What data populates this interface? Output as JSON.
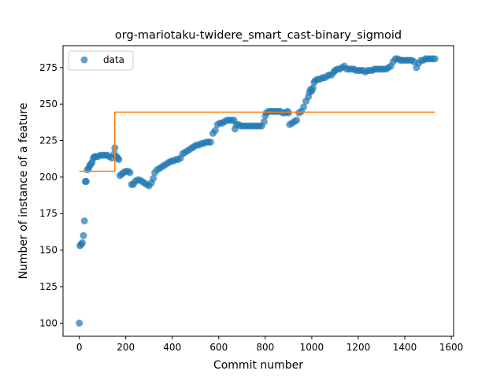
{
  "chart_data": {
    "type": "scatter",
    "title": "org-mariotaku-twidere_smart_cast-binary_sigmoid",
    "xlabel": "Commit number",
    "ylabel": "Number of instance of a feature",
    "xlim": [
      -70,
      1610
    ],
    "ylim": [
      91,
      290
    ],
    "xticks": [
      0,
      200,
      400,
      600,
      800,
      1000,
      1200,
      1400,
      1600
    ],
    "yticks": [
      100,
      125,
      150,
      175,
      200,
      225,
      250,
      275
    ],
    "grid": false,
    "legend_position": "top-left",
    "colors": {
      "scatter": "#1f77b4",
      "step": "#ff7f0e"
    },
    "scatter_series": {
      "name": "data",
      "points": [
        [
          0,
          100
        ],
        [
          3,
          153
        ],
        [
          8,
          154
        ],
        [
          13,
          155
        ],
        [
          18,
          160
        ],
        [
          22,
          170
        ],
        [
          26,
          197
        ],
        [
          30,
          197
        ],
        [
          35,
          205
        ],
        [
          40,
          206
        ],
        [
          45,
          208
        ],
        [
          50,
          209
        ],
        [
          55,
          210
        ],
        [
          60,
          213
        ],
        [
          65,
          214
        ],
        [
          70,
          214
        ],
        [
          80,
          214
        ],
        [
          90,
          215
        ],
        [
          100,
          215
        ],
        [
          110,
          215
        ],
        [
          120,
          215
        ],
        [
          130,
          214
        ],
        [
          140,
          213
        ],
        [
          150,
          216
        ],
        [
          153,
          220
        ],
        [
          160,
          214
        ],
        [
          165,
          213
        ],
        [
          170,
          212
        ],
        [
          175,
          201
        ],
        [
          182,
          202
        ],
        [
          190,
          203
        ],
        [
          200,
          204
        ],
        [
          210,
          204
        ],
        [
          218,
          203
        ],
        [
          225,
          195
        ],
        [
          232,
          195
        ],
        [
          240,
          197
        ],
        [
          250,
          198
        ],
        [
          260,
          198
        ],
        [
          270,
          197
        ],
        [
          280,
          196
        ],
        [
          290,
          195
        ],
        [
          300,
          194
        ],
        [
          310,
          196
        ],
        [
          318,
          199
        ],
        [
          325,
          203
        ],
        [
          335,
          205
        ],
        [
          345,
          206
        ],
        [
          355,
          207
        ],
        [
          365,
          208
        ],
        [
          375,
          209
        ],
        [
          385,
          210
        ],
        [
          395,
          211
        ],
        [
          405,
          211
        ],
        [
          415,
          212
        ],
        [
          425,
          212
        ],
        [
          435,
          213
        ],
        [
          445,
          216
        ],
        [
          455,
          217
        ],
        [
          465,
          218
        ],
        [
          475,
          219
        ],
        [
          485,
          220
        ],
        [
          495,
          221
        ],
        [
          505,
          222
        ],
        [
          515,
          222
        ],
        [
          525,
          223
        ],
        [
          535,
          223
        ],
        [
          545,
          224
        ],
        [
          555,
          224
        ],
        [
          565,
          224
        ],
        [
          575,
          230
        ],
        [
          585,
          232
        ],
        [
          595,
          236
        ],
        [
          605,
          237
        ],
        [
          615,
          237
        ],
        [
          625,
          238
        ],
        [
          635,
          239
        ],
        [
          645,
          239
        ],
        [
          655,
          239
        ],
        [
          665,
          239
        ],
        [
          670,
          233
        ],
        [
          675,
          236
        ],
        [
          685,
          236
        ],
        [
          695,
          235
        ],
        [
          705,
          235
        ],
        [
          715,
          235
        ],
        [
          725,
          235
        ],
        [
          735,
          235
        ],
        [
          745,
          235
        ],
        [
          755,
          235
        ],
        [
          765,
          235
        ],
        [
          775,
          235
        ],
        [
          785,
          235
        ],
        [
          795,
          238
        ],
        [
          800,
          242
        ],
        [
          805,
          244
        ],
        [
          815,
          245
        ],
        [
          825,
          245
        ],
        [
          835,
          245
        ],
        [
          845,
          245
        ],
        [
          855,
          245
        ],
        [
          865,
          245
        ],
        [
          875,
          244
        ],
        [
          885,
          244
        ],
        [
          895,
          245
        ],
        [
          900,
          244
        ],
        [
          905,
          236
        ],
        [
          915,
          237
        ],
        [
          925,
          238
        ],
        [
          935,
          239
        ],
        [
          945,
          244
        ],
        [
          955,
          245
        ],
        [
          965,
          248
        ],
        [
          975,
          252
        ],
        [
          985,
          255
        ],
        [
          990,
          258
        ],
        [
          995,
          260
        ],
        [
          1000,
          259
        ],
        [
          1005,
          261
        ],
        [
          1010,
          265
        ],
        [
          1015,
          266
        ],
        [
          1025,
          267
        ],
        [
          1035,
          267
        ],
        [
          1045,
          268
        ],
        [
          1055,
          268
        ],
        [
          1065,
          269
        ],
        [
          1075,
          270
        ],
        [
          1085,
          270
        ],
        [
          1095,
          272
        ],
        [
          1100,
          273
        ],
        [
          1110,
          274
        ],
        [
          1120,
          274
        ],
        [
          1130,
          275
        ],
        [
          1140,
          276
        ],
        [
          1150,
          274
        ],
        [
          1160,
          274
        ],
        [
          1170,
          274
        ],
        [
          1180,
          274
        ],
        [
          1190,
          273
        ],
        [
          1200,
          273
        ],
        [
          1210,
          273
        ],
        [
          1220,
          273
        ],
        [
          1230,
          272
        ],
        [
          1240,
          273
        ],
        [
          1250,
          273
        ],
        [
          1260,
          273
        ],
        [
          1270,
          274
        ],
        [
          1280,
          274
        ],
        [
          1290,
          274
        ],
        [
          1300,
          274
        ],
        [
          1310,
          274
        ],
        [
          1320,
          274
        ],
        [
          1330,
          275
        ],
        [
          1340,
          276
        ],
        [
          1350,
          279
        ],
        [
          1360,
          281
        ],
        [
          1370,
          281
        ],
        [
          1380,
          280
        ],
        [
          1390,
          280
        ],
        [
          1400,
          280
        ],
        [
          1410,
          280
        ],
        [
          1420,
          280
        ],
        [
          1430,
          280
        ],
        [
          1440,
          279
        ],
        [
          1450,
          275
        ],
        [
          1460,
          278
        ],
        [
          1470,
          280
        ],
        [
          1480,
          280
        ],
        [
          1490,
          281
        ],
        [
          1500,
          281
        ],
        [
          1510,
          281
        ],
        [
          1520,
          281
        ],
        [
          1530,
          281
        ]
      ]
    },
    "step_series": {
      "points": [
        [
          0,
          204
        ],
        [
          153,
          204
        ],
        [
          153,
          244.5
        ],
        [
          1530,
          244.5
        ]
      ]
    },
    "legend": {
      "label": "data"
    }
  }
}
